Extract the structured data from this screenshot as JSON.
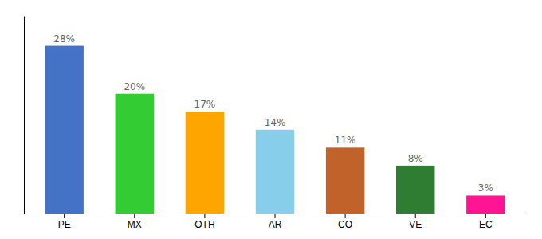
{
  "chart_data": {
    "type": "bar",
    "categories": [
      "PE",
      "MX",
      "OTH",
      "AR",
      "CO",
      "VE",
      "EC"
    ],
    "values": [
      28,
      20,
      17,
      14,
      11,
      8,
      3
    ],
    "value_labels": [
      "28%",
      "20%",
      "17%",
      "14%",
      "11%",
      "8%",
      "3%"
    ],
    "colors": [
      "#4472C4",
      "#33CC33",
      "#FFA500",
      "#87CEEB",
      "#C0622A",
      "#2E7D32",
      "#FF1493"
    ],
    "ylim": [
      0,
      33
    ],
    "data_labels": true,
    "tick_labels": "x"
  }
}
